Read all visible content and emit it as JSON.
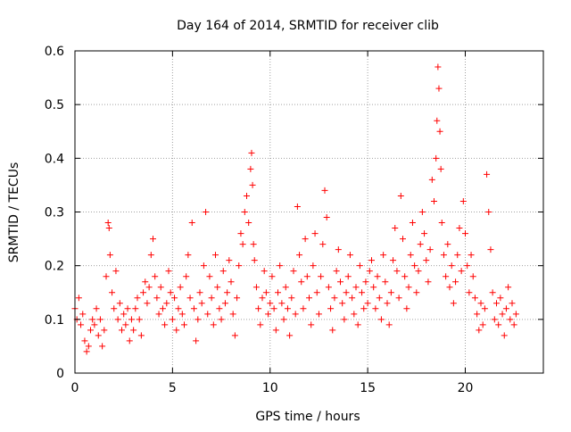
{
  "chart_data": {
    "type": "scatter",
    "title": "Day 164 of 2014, SRMTID for receiver clib",
    "xlabel": "GPS time / hours",
    "ylabel": "SRMTID / TECUs",
    "xlim": [
      0,
      24
    ],
    "ylim": [
      0,
      0.6
    ],
    "xticks": [
      0,
      5,
      10,
      15,
      20
    ],
    "yticks": [
      0,
      0.1,
      0.2,
      0.3,
      0.4,
      0.5,
      0.6
    ],
    "xtick_labels": [
      "0",
      "5",
      "10",
      "15",
      "20"
    ],
    "ytick_labels": [
      "0",
      "0.1",
      "0.2",
      "0.3",
      "0.4",
      "0.5",
      "0.6"
    ],
    "grid": true,
    "marker": "+",
    "marker_color": "#ff0000",
    "series": [
      {
        "name": "SRMTID",
        "points": [
          [
            0.0,
            0.12
          ],
          [
            0.1,
            0.1
          ],
          [
            0.2,
            0.14
          ],
          [
            0.3,
            0.09
          ],
          [
            0.4,
            0.11
          ],
          [
            0.5,
            0.06
          ],
          [
            0.6,
            0.04
          ],
          [
            0.7,
            0.05
          ],
          [
            0.8,
            0.08
          ],
          [
            0.9,
            0.1
          ],
          [
            1.0,
            0.09
          ],
          [
            1.1,
            0.12
          ],
          [
            1.2,
            0.07
          ],
          [
            1.3,
            0.1
          ],
          [
            1.4,
            0.05
          ],
          [
            1.5,
            0.08
          ],
          [
            1.6,
            0.18
          ],
          [
            1.7,
            0.28
          ],
          [
            1.75,
            0.27
          ],
          [
            1.8,
            0.22
          ],
          [
            1.9,
            0.15
          ],
          [
            2.0,
            0.12
          ],
          [
            2.1,
            0.19
          ],
          [
            2.2,
            0.1
          ],
          [
            2.3,
            0.13
          ],
          [
            2.4,
            0.08
          ],
          [
            2.5,
            0.11
          ],
          [
            2.6,
            0.09
          ],
          [
            2.7,
            0.12
          ],
          [
            2.8,
            0.06
          ],
          [
            2.9,
            0.1
          ],
          [
            3.0,
            0.08
          ],
          [
            3.1,
            0.12
          ],
          [
            3.2,
            0.14
          ],
          [
            3.3,
            0.1
          ],
          [
            3.4,
            0.07
          ],
          [
            3.5,
            0.15
          ],
          [
            3.6,
            0.17
          ],
          [
            3.7,
            0.13
          ],
          [
            3.8,
            0.16
          ],
          [
            3.9,
            0.22
          ],
          [
            4.0,
            0.25
          ],
          [
            4.1,
            0.18
          ],
          [
            4.2,
            0.14
          ],
          [
            4.3,
            0.11
          ],
          [
            4.4,
            0.16
          ],
          [
            4.5,
            0.12
          ],
          [
            4.6,
            0.09
          ],
          [
            4.7,
            0.13
          ],
          [
            4.8,
            0.19
          ],
          [
            4.9,
            0.15
          ],
          [
            5.0,
            0.1
          ],
          [
            5.1,
            0.14
          ],
          [
            5.2,
            0.08
          ],
          [
            5.3,
            0.12
          ],
          [
            5.4,
            0.16
          ],
          [
            5.5,
            0.11
          ],
          [
            5.6,
            0.09
          ],
          [
            5.7,
            0.18
          ],
          [
            5.8,
            0.22
          ],
          [
            5.9,
            0.14
          ],
          [
            6.0,
            0.28
          ],
          [
            6.1,
            0.12
          ],
          [
            6.2,
            0.06
          ],
          [
            6.3,
            0.1
          ],
          [
            6.4,
            0.15
          ],
          [
            6.5,
            0.13
          ],
          [
            6.6,
            0.2
          ],
          [
            6.7,
            0.3
          ],
          [
            6.8,
            0.11
          ],
          [
            6.9,
            0.18
          ],
          [
            7.0,
            0.14
          ],
          [
            7.1,
            0.09
          ],
          [
            7.2,
            0.22
          ],
          [
            7.3,
            0.16
          ],
          [
            7.4,
            0.12
          ],
          [
            7.5,
            0.1
          ],
          [
            7.6,
            0.19
          ],
          [
            7.7,
            0.13
          ],
          [
            7.8,
            0.15
          ],
          [
            7.9,
            0.21
          ],
          [
            8.0,
            0.17
          ],
          [
            8.1,
            0.11
          ],
          [
            8.2,
            0.07
          ],
          [
            8.3,
            0.14
          ],
          [
            8.4,
            0.2
          ],
          [
            8.5,
            0.26
          ],
          [
            8.6,
            0.24
          ],
          [
            8.7,
            0.3
          ],
          [
            8.8,
            0.33
          ],
          [
            8.9,
            0.28
          ],
          [
            9.0,
            0.38
          ],
          [
            9.05,
            0.41
          ],
          [
            9.1,
            0.35
          ],
          [
            9.15,
            0.24
          ],
          [
            9.2,
            0.21
          ],
          [
            9.3,
            0.16
          ],
          [
            9.4,
            0.12
          ],
          [
            9.5,
            0.09
          ],
          [
            9.6,
            0.14
          ],
          [
            9.7,
            0.19
          ],
          [
            9.8,
            0.15
          ],
          [
            9.9,
            0.11
          ],
          [
            10.0,
            0.13
          ],
          [
            10.1,
            0.18
          ],
          [
            10.2,
            0.12
          ],
          [
            10.3,
            0.08
          ],
          [
            10.4,
            0.15
          ],
          [
            10.5,
            0.2
          ],
          [
            10.6,
            0.13
          ],
          [
            10.7,
            0.1
          ],
          [
            10.8,
            0.16
          ],
          [
            10.9,
            0.12
          ],
          [
            11.0,
            0.07
          ],
          [
            11.1,
            0.14
          ],
          [
            11.2,
            0.19
          ],
          [
            11.3,
            0.11
          ],
          [
            11.4,
            0.31
          ],
          [
            11.5,
            0.22
          ],
          [
            11.6,
            0.17
          ],
          [
            11.7,
            0.12
          ],
          [
            11.8,
            0.25
          ],
          [
            11.9,
            0.18
          ],
          [
            12.0,
            0.14
          ],
          [
            12.1,
            0.09
          ],
          [
            12.2,
            0.2
          ],
          [
            12.3,
            0.26
          ],
          [
            12.4,
            0.15
          ],
          [
            12.5,
            0.11
          ],
          [
            12.6,
            0.18
          ],
          [
            12.7,
            0.24
          ],
          [
            12.8,
            0.34
          ],
          [
            12.9,
            0.29
          ],
          [
            13.0,
            0.16
          ],
          [
            13.1,
            0.12
          ],
          [
            13.2,
            0.08
          ],
          [
            13.3,
            0.14
          ],
          [
            13.4,
            0.19
          ],
          [
            13.5,
            0.23
          ],
          [
            13.6,
            0.17
          ],
          [
            13.7,
            0.13
          ],
          [
            13.8,
            0.1
          ],
          [
            13.9,
            0.15
          ],
          [
            14.0,
            0.18
          ],
          [
            14.1,
            0.22
          ],
          [
            14.2,
            0.14
          ],
          [
            14.3,
            0.11
          ],
          [
            14.4,
            0.16
          ],
          [
            14.5,
            0.09
          ],
          [
            14.6,
            0.2
          ],
          [
            14.7,
            0.15
          ],
          [
            14.8,
            0.12
          ],
          [
            14.9,
            0.17
          ],
          [
            15.0,
            0.13
          ],
          [
            15.1,
            0.19
          ],
          [
            15.2,
            0.21
          ],
          [
            15.3,
            0.16
          ],
          [
            15.4,
            0.12
          ],
          [
            15.5,
            0.18
          ],
          [
            15.6,
            0.14
          ],
          [
            15.7,
            0.1
          ],
          [
            15.8,
            0.22
          ],
          [
            15.9,
            0.17
          ],
          [
            16.0,
            0.13
          ],
          [
            16.1,
            0.09
          ],
          [
            16.2,
            0.15
          ],
          [
            16.3,
            0.21
          ],
          [
            16.4,
            0.27
          ],
          [
            16.5,
            0.19
          ],
          [
            16.6,
            0.14
          ],
          [
            16.7,
            0.33
          ],
          [
            16.8,
            0.25
          ],
          [
            16.9,
            0.18
          ],
          [
            17.0,
            0.12
          ],
          [
            17.1,
            0.16
          ],
          [
            17.2,
            0.22
          ],
          [
            17.3,
            0.28
          ],
          [
            17.4,
            0.2
          ],
          [
            17.5,
            0.15
          ],
          [
            17.6,
            0.19
          ],
          [
            17.7,
            0.24
          ],
          [
            17.8,
            0.3
          ],
          [
            17.9,
            0.26
          ],
          [
            18.0,
            0.21
          ],
          [
            18.1,
            0.17
          ],
          [
            18.2,
            0.23
          ],
          [
            18.3,
            0.36
          ],
          [
            18.4,
            0.32
          ],
          [
            18.5,
            0.4
          ],
          [
            18.55,
            0.47
          ],
          [
            18.6,
            0.57
          ],
          [
            18.65,
            0.53
          ],
          [
            18.7,
            0.45
          ],
          [
            18.75,
            0.38
          ],
          [
            18.8,
            0.28
          ],
          [
            18.9,
            0.22
          ],
          [
            19.0,
            0.18
          ],
          [
            19.1,
            0.24
          ],
          [
            19.2,
            0.16
          ],
          [
            19.3,
            0.2
          ],
          [
            19.4,
            0.13
          ],
          [
            19.5,
            0.17
          ],
          [
            19.6,
            0.22
          ],
          [
            19.7,
            0.27
          ],
          [
            19.8,
            0.19
          ],
          [
            19.9,
            0.32
          ],
          [
            20.0,
            0.26
          ],
          [
            20.1,
            0.2
          ],
          [
            20.2,
            0.15
          ],
          [
            20.3,
            0.22
          ],
          [
            20.4,
            0.18
          ],
          [
            20.5,
            0.14
          ],
          [
            20.6,
            0.11
          ],
          [
            20.7,
            0.08
          ],
          [
            20.8,
            0.13
          ],
          [
            20.9,
            0.09
          ],
          [
            21.0,
            0.12
          ],
          [
            21.1,
            0.37
          ],
          [
            21.2,
            0.3
          ],
          [
            21.3,
            0.23
          ],
          [
            21.4,
            0.15
          ],
          [
            21.5,
            0.1
          ],
          [
            21.6,
            0.13
          ],
          [
            21.7,
            0.09
          ],
          [
            21.8,
            0.14
          ],
          [
            21.9,
            0.11
          ],
          [
            22.0,
            0.07
          ],
          [
            22.1,
            0.12
          ],
          [
            22.2,
            0.16
          ],
          [
            22.3,
            0.1
          ],
          [
            22.4,
            0.13
          ],
          [
            22.5,
            0.09
          ],
          [
            22.6,
            0.11
          ]
        ]
      }
    ]
  }
}
